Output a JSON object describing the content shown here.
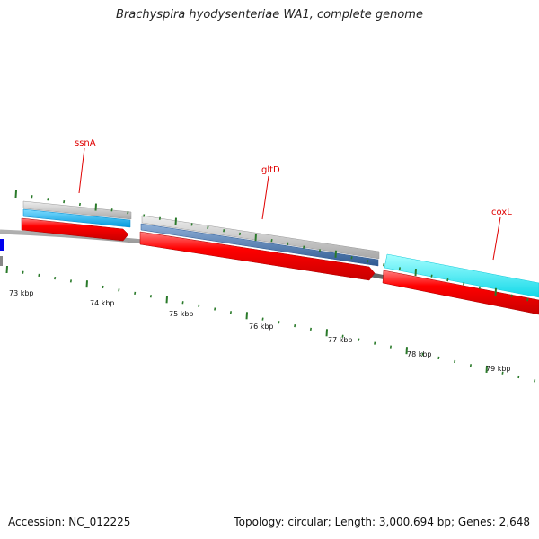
{
  "title": "Brachyspira hyodysenteriae WA1, complete genome",
  "footer": {
    "accession": "Accession: NC_012225",
    "summary": "Topology: circular; Length: 3,000,694 bp; Genes: 2,648"
  },
  "genes": [
    {
      "name": "ssnA"
    },
    {
      "name": "gltD"
    },
    {
      "name": "coxL"
    }
  ],
  "ruler_labels": [
    "73 kbp",
    "74 kbp",
    "75 kbp",
    "76 kbp",
    "77 kbp",
    "78 kbp",
    "79 kbp"
  ],
  "colors": {
    "backbone": "#777777",
    "forward_cds": "#ff0000",
    "gene_label": "#e00000",
    "tick": "#2a7a2a",
    "cds_light_blue": "#00b8f0",
    "cds_cyan": "#19eaf5",
    "cds_steel_blue": "#4f77ad",
    "rna_gray": "#c0c0c0",
    "reverse_blue": "#0000ee"
  }
}
